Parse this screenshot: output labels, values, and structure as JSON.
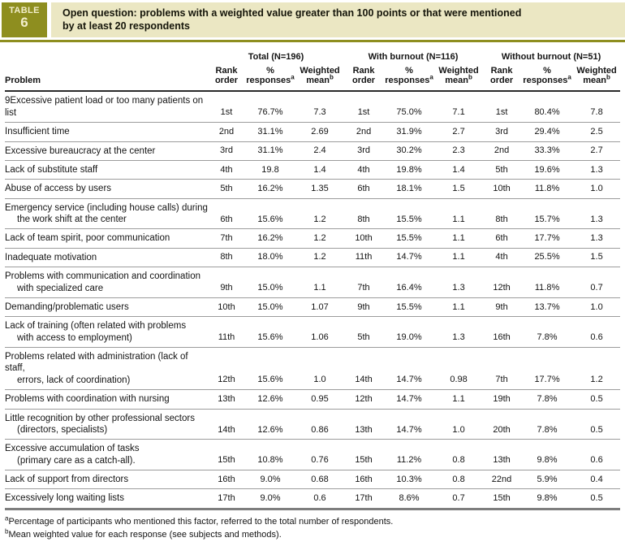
{
  "badge": {
    "line1": "TABLE",
    "line2": "6"
  },
  "title": {
    "line1": "Open question: problems with a weighted value greater than 100 points or that were mentioned",
    "line2": "by at least 20 respondents"
  },
  "colors": {
    "accent_olive": "#8e8e1f",
    "banner_cream": "#ebe7c3",
    "row_separator": "#9c9c9c",
    "bottom_rule": "#7e7e7e"
  },
  "groups": [
    {
      "label": "Total (N=196)"
    },
    {
      "label": "With burnout (N=116)"
    },
    {
      "label": "Without burnout (N=51)"
    }
  ],
  "columns": {
    "problem": "Problem",
    "rank": "Rank order",
    "pct": "% responses",
    "pct_sup": "a",
    "wmean": "Weighted mean",
    "wmean_sup": "b"
  },
  "rows": [
    {
      "problem": [
        "9Excessive patient load or too many patients on list"
      ],
      "total": [
        "1st",
        "76.7%",
        "7.3"
      ],
      "burnout": [
        "1st",
        "75.0%",
        "7.1"
      ],
      "no_burnout": [
        "1st",
        "80.4%",
        "7.8"
      ]
    },
    {
      "problem": [
        "Insufficient time"
      ],
      "total": [
        "2nd",
        "31.1%",
        "2.69"
      ],
      "burnout": [
        "2nd",
        "31.9%",
        "2.7"
      ],
      "no_burnout": [
        "3rd",
        "29.4%",
        "2.5"
      ]
    },
    {
      "problem": [
        "Excessive bureaucracy at the center"
      ],
      "total": [
        "3rd",
        "31.1%",
        "2.4"
      ],
      "burnout": [
        "3rd",
        "30.2%",
        "2.3"
      ],
      "no_burnout": [
        "2nd",
        "33.3%",
        "2.7"
      ]
    },
    {
      "problem": [
        "Lack of substitute staff"
      ],
      "total": [
        "4th",
        "19.8",
        "1.4"
      ],
      "burnout": [
        "4th",
        "19.8%",
        "1.4"
      ],
      "no_burnout": [
        "5th",
        "19.6%",
        "1.3"
      ]
    },
    {
      "problem": [
        "Abuse of access by users"
      ],
      "total": [
        "5th",
        "16.2%",
        "1.35"
      ],
      "burnout": [
        "6th",
        "18.1%",
        "1.5"
      ],
      "no_burnout": [
        "10th",
        "11.8%",
        "1.0"
      ]
    },
    {
      "problem": [
        "Emergency service (including house calls) during",
        "the work shift at the center"
      ],
      "total": [
        "6th",
        "15.6%",
        "1.2"
      ],
      "burnout": [
        "8th",
        "15.5%",
        "1.1"
      ],
      "no_burnout": [
        "8th",
        "15.7%",
        "1.3"
      ]
    },
    {
      "problem": [
        "Lack of team spirit, poor communication"
      ],
      "total": [
        "7th",
        "16.2%",
        "1.2"
      ],
      "burnout": [
        "10th",
        "15.5%",
        "1.1"
      ],
      "no_burnout": [
        "6th",
        "17.7%",
        "1.3"
      ]
    },
    {
      "problem": [
        "Inadequate motivation"
      ],
      "total": [
        "8th",
        "18.0%",
        "1.2"
      ],
      "burnout": [
        "11th",
        "14.7%",
        "1.1"
      ],
      "no_burnout": [
        "4th",
        "25.5%",
        "1.5"
      ]
    },
    {
      "problem": [
        "Problems with communication and coordination",
        "with specialized care"
      ],
      "total": [
        "9th",
        "15.0%",
        "1.1"
      ],
      "burnout": [
        "7th",
        "16.4%",
        "1.3"
      ],
      "no_burnout": [
        "12th",
        "11.8%",
        "0.7"
      ]
    },
    {
      "problem": [
        "Demanding/problematic users"
      ],
      "total": [
        "10th",
        "15.0%",
        "1.07"
      ],
      "burnout": [
        "9th",
        "15.5%",
        "1.1"
      ],
      "no_burnout": [
        "9th",
        "13.7%",
        "1.0"
      ]
    },
    {
      "problem": [
        "Lack of training (often related with problems",
        "with access to employment)"
      ],
      "total": [
        "11th",
        "15.6%",
        "1.06"
      ],
      "burnout": [
        "5th",
        "19.0%",
        "1.3"
      ],
      "no_burnout": [
        "16th",
        "7.8%",
        "0.6"
      ]
    },
    {
      "problem": [
        "Problems related with administration (lack of staff,",
        "errors, lack of coordination)"
      ],
      "total": [
        "12th",
        "15.6%",
        "1.0"
      ],
      "burnout": [
        "14th",
        "14.7%",
        "0.98"
      ],
      "no_burnout": [
        "7th",
        "17.7%",
        "1.2"
      ]
    },
    {
      "problem": [
        "Problems with coordination with nursing"
      ],
      "total": [
        "13th",
        "12.6%",
        "0.95"
      ],
      "burnout": [
        "12th",
        "14.7%",
        "1.1"
      ],
      "no_burnout": [
        "19th",
        "7.8%",
        "0.5"
      ]
    },
    {
      "problem": [
        "Little recognition by other professional sectors",
        "(directors, specialists)"
      ],
      "total": [
        "14th",
        "12.6%",
        "0.86"
      ],
      "burnout": [
        "13th",
        "14.7%",
        "1.0"
      ],
      "no_burnout": [
        "20th",
        "7.8%",
        "0.5"
      ]
    },
    {
      "problem": [
        "Excessive accumulation of tasks",
        "(primary care as a catch-all)."
      ],
      "total": [
        "15th",
        "10.8%",
        "0.76"
      ],
      "burnout": [
        "15th",
        "11.2%",
        "0.8"
      ],
      "no_burnout": [
        "13th",
        "9.8%",
        "0.6"
      ]
    },
    {
      "problem": [
        "Lack of support from directors"
      ],
      "total": [
        "16th",
        "9.0%",
        "0.68"
      ],
      "burnout": [
        "16th",
        "10.3%",
        "0.8"
      ],
      "no_burnout": [
        "22nd",
        "5.9%",
        "0.4"
      ]
    },
    {
      "problem": [
        "Excessively long waiting lists"
      ],
      "total": [
        "17th",
        "9.0%",
        "0.6"
      ],
      "burnout": [
        "17th",
        "8.6%",
        "0.7"
      ],
      "no_burnout": [
        "15th",
        "9.8%",
        "0.5"
      ]
    }
  ],
  "footnotes": [
    {
      "sup": "a",
      "text": "Percentage of participants who mentioned this factor, referred to the total number of respondents."
    },
    {
      "sup": "b",
      "text": "Mean weighted value for each response (see subjects and methods)."
    }
  ]
}
